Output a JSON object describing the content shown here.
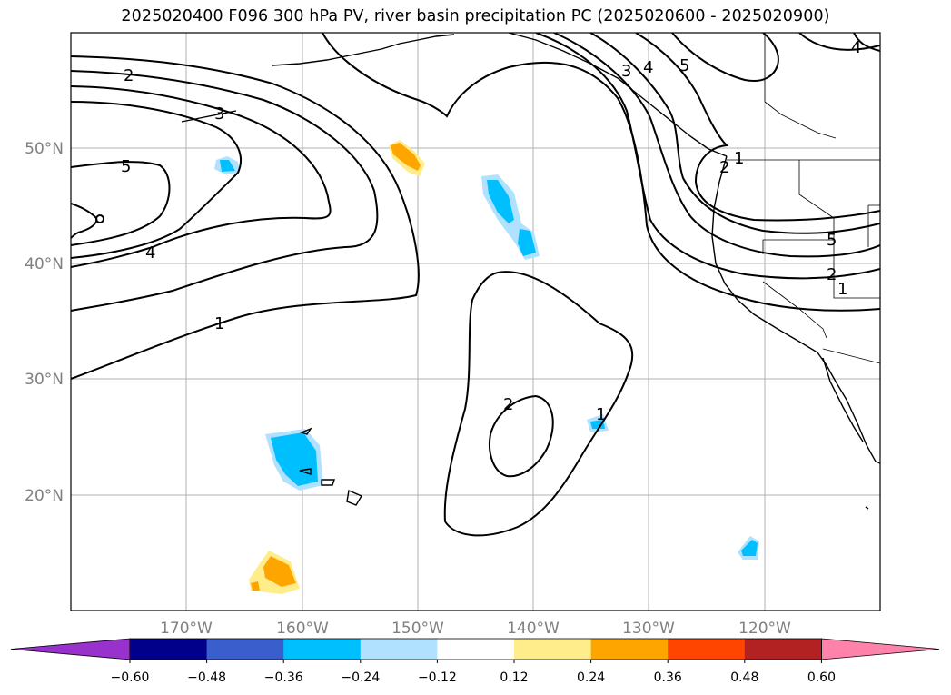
{
  "title": "2025020400 F096 300 hPa PV, river basin precipitation PC (2025020600 - 2025020900)",
  "map": {
    "lat_labels": [
      "50°N",
      "40°N",
      "30°N",
      "20°N"
    ],
    "lon_labels": [
      "170°W",
      "160°W",
      "150°W",
      "140°W",
      "130°W",
      "120°W"
    ],
    "axis_label_color": "#808080",
    "contour_labels": [
      "2",
      "3",
      "5",
      "4",
      "1",
      "2",
      "1",
      "3",
      "4",
      "5",
      "4",
      "5",
      "2",
      "1",
      "1",
      "2"
    ]
  },
  "colorbar": {
    "ticks": [
      "−0.60",
      "−0.48",
      "−0.36",
      "−0.24",
      "−0.12",
      "0.12",
      "0.24",
      "0.36",
      "0.48",
      "0.60"
    ],
    "colors": [
      "#9932CC",
      "#00008B",
      "#3A5FCD",
      "#00BFFF",
      "#B0E2FF",
      "#FFFFFF",
      "#FFEC8B",
      "#FFA500",
      "#FF4500",
      "#B22222",
      "#FF82AB"
    ]
  }
}
